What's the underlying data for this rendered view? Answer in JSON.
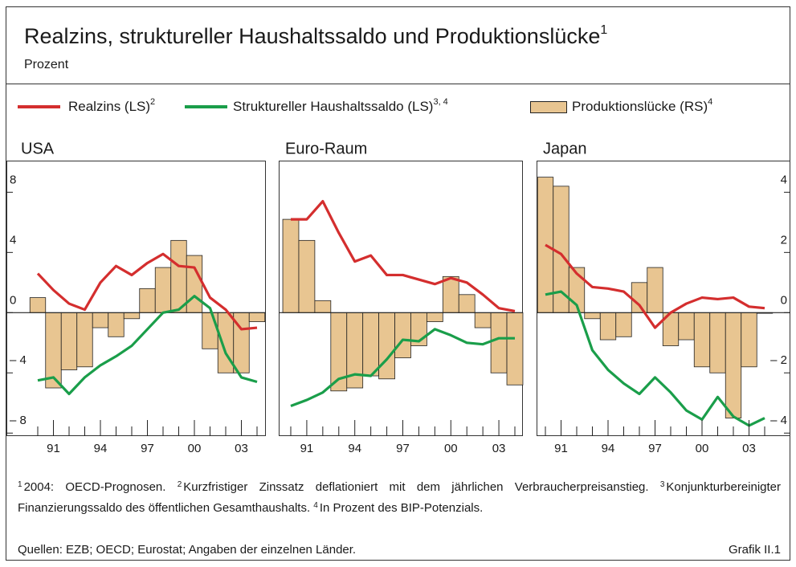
{
  "title": "Realzins, struktureller Haushaltssaldo und Produktionslücke",
  "title_note": "1",
  "subtitle": "Prozent",
  "legend": [
    {
      "name": "Realzins (LS)",
      "note": "2",
      "color": "#d42e2e"
    },
    {
      "name": "Struktureller Haushaltssaldo (LS)",
      "note": "3, 4",
      "color": "#1a9e4a"
    },
    {
      "name": "Produktionslücke (RS)",
      "note": "4",
      "color": "#e8c591"
    }
  ],
  "chart_data": [
    {
      "type": "bar_line",
      "title": "USA",
      "categories": [
        null,
        "91",
        null,
        null,
        "94",
        null,
        null,
        "97",
        null,
        null,
        "00",
        null,
        null,
        "03",
        null
      ],
      "ylim": [
        -8.2,
        10.1
      ],
      "y2lim": [
        -4.1,
        5.05
      ],
      "yticks": [
        8,
        4,
        0,
        {
          "value": -4,
          "label": "– 4"
        },
        {
          "value": -8,
          "label": "– 8"
        }
      ],
      "series": [
        {
          "values": [
            2.6,
            1.5,
            0.6,
            0.2,
            2.0,
            3.1,
            2.5,
            3.3,
            3.9,
            3.1,
            3.0,
            1.0,
            0.2,
            -1.1,
            -1.0
          ]
        },
        {
          "values": [
            -4.5,
            -4.3,
            -5.4,
            -4.3,
            -3.5,
            -2.9,
            -2.2,
            -1.1,
            0,
            0.2,
            1.1,
            0.3,
            -2.7,
            -4.3,
            -4.6
          ]
        },
        {
          "values": [
            0.5,
            -2.5,
            -1.9,
            -1.8,
            -0.5,
            -0.8,
            -0.2,
            0.8,
            1.5,
            2.4,
            1.9,
            -1.2,
            -2.0,
            -2.0,
            -0.3
          ],
          "axis": "y2"
        }
      ]
    },
    {
      "type": "bar_line",
      "title": "Euro-Raum",
      "categories": [
        null,
        "91",
        null,
        null,
        "94",
        null,
        null,
        "97",
        null,
        null,
        "00",
        null,
        null,
        "03",
        null
      ],
      "ylim": [
        -8.2,
        10.1
      ],
      "y2lim": [
        -4.1,
        5.05
      ],
      "series": [
        {
          "values": [
            6.2,
            6.2,
            7.4,
            5.3,
            3.4,
            3.8,
            2.5,
            2.5,
            2.2,
            1.9,
            2.3,
            2.0,
            1.2,
            0.3,
            0.1
          ]
        },
        {
          "values": [
            -6.2,
            -5.8,
            -5.3,
            -4.4,
            -4.1,
            -4.2,
            -3.1,
            -1.8,
            -1.9,
            -1.1,
            -1.5,
            -2.0,
            -2.1,
            -1.7,
            -1.7
          ]
        },
        {
          "values": [
            3.1,
            2.4,
            0.4,
            -2.6,
            -2.5,
            -2.1,
            -2.2,
            -1.5,
            -1.1,
            -0.3,
            1.2,
            0.6,
            -0.5,
            -2.0,
            -2.4
          ],
          "axis": "y2"
        }
      ]
    },
    {
      "type": "bar_line",
      "title": "Japan",
      "categories": [
        null,
        "91",
        null,
        null,
        "94",
        null,
        null,
        "97",
        null,
        null,
        "00",
        null,
        null,
        "03",
        null
      ],
      "ylim": [
        -8.2,
        10.1
      ],
      "y2lim": [
        -4.1,
        5.05
      ],
      "y2ticks": [
        4,
        2,
        0,
        {
          "value": -2,
          "label": "– 2"
        },
        {
          "value": -4,
          "label": "– 4"
        }
      ],
      "series": [
        {
          "values": [
            4.5,
            3.9,
            2.6,
            1.7,
            1.6,
            1.4,
            0.5,
            -1.0,
            0,
            0.6,
            1.0,
            0.9,
            1.0,
            0.4,
            0.3
          ]
        },
        {
          "values": [
            1.2,
            1.4,
            0.5,
            -2.5,
            -3.8,
            -4.7,
            -5.4,
            -4.3,
            -5.3,
            -6.5,
            -7.1,
            -5.6,
            -6.9,
            -7.5,
            -7.0
          ]
        },
        {
          "values": [
            4.5,
            4.2,
            1.5,
            -0.2,
            -0.9,
            -0.8,
            1.0,
            1.5,
            -1.1,
            -0.9,
            -1.8,
            -2.0,
            -3.5,
            -1.8,
            0
          ],
          "axis": "y2"
        }
      ]
    }
  ],
  "notes": [
    {
      "mark": "1",
      "text": "2004: OECD-Prognosen."
    },
    {
      "mark": "2",
      "text": "Kurzfristiger Zinssatz deflationiert mit dem jährlichen Verbraucherpreis­anstieg."
    },
    {
      "mark": "3",
      "text": "Konjunkturbereinigter Finanzierungssaldo des öffentlichen Gesamthaushalts."
    },
    {
      "mark": "4",
      "text": "In Prozent des BIP-Potenzials."
    }
  ],
  "source": "Quellen: EZB; OECD; Eurostat; Angaben der einzelnen Länder.",
  "figure_label": "Grafik II.1"
}
